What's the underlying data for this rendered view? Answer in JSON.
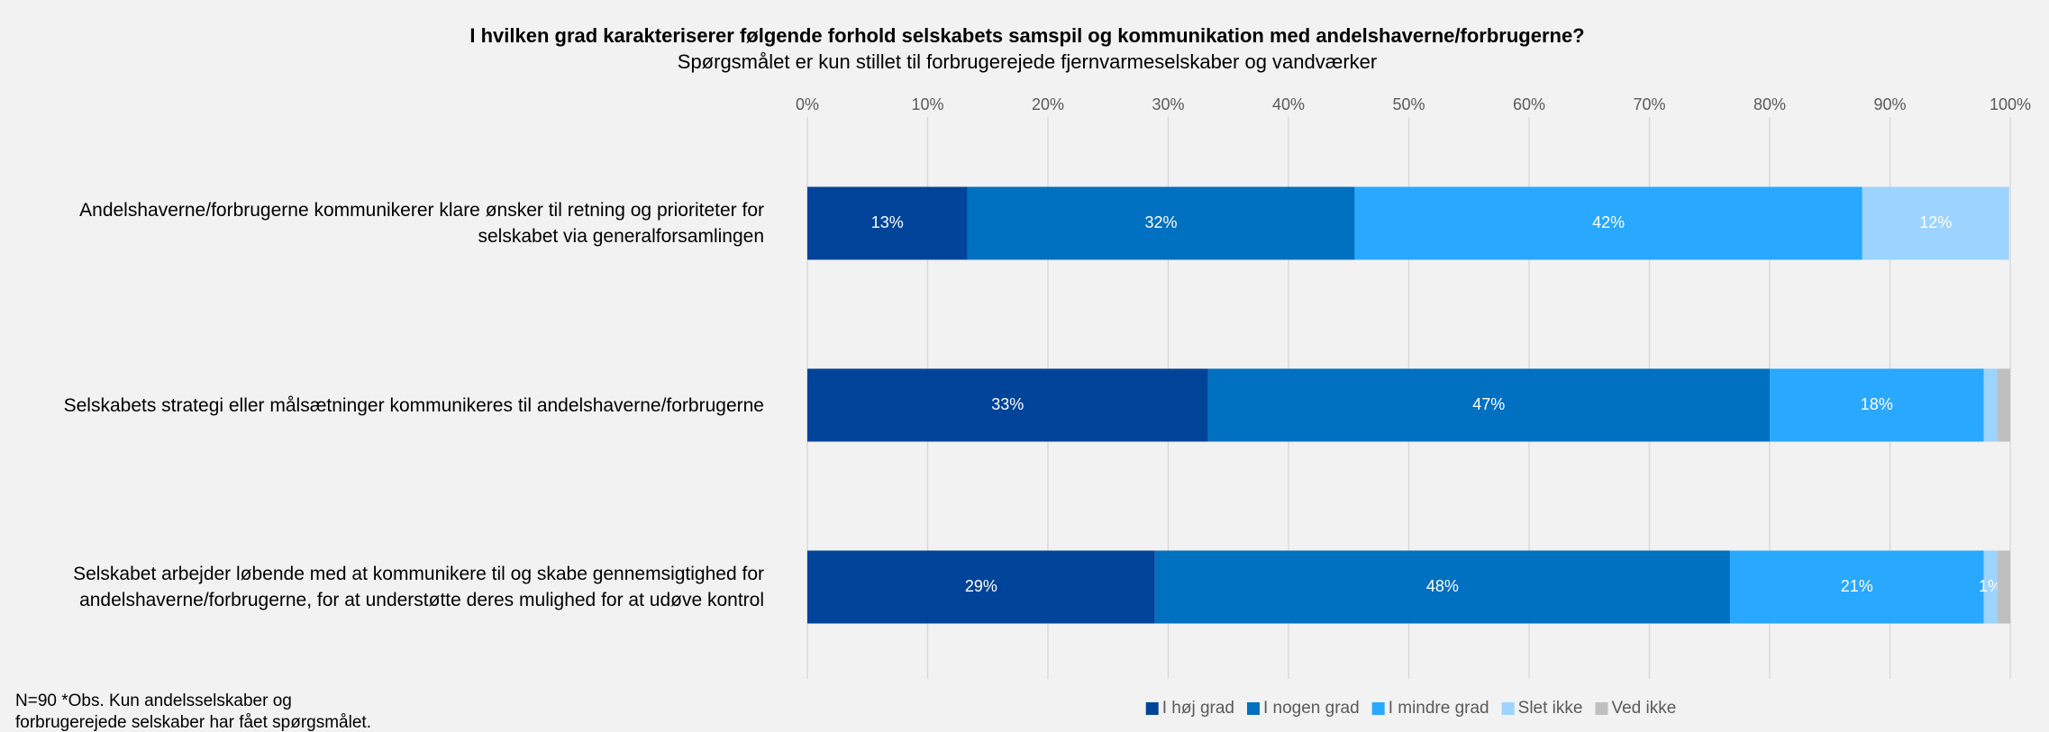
{
  "chart_data": {
    "type": "stacked_barh",
    "title": "I hvilken grad karakteriserer følgende forhold selskabets samspil og kommunikation med andelshaverne/forbrugerne?",
    "subtitle": "Spørgsmålet er kun stillet til forbrugerejede fjernvarmeselskaber og vandværker",
    "categories": [
      "Andelshaverne/forbrugerne kommunikerer klare ønsker til retning og prioriteter for selskabet via generalforsamlingen",
      "Selskabets strategi eller målsætninger kommunikeres til andelshaverne/forbrugerne",
      "Selskabet arbejder løbende med at kommunikere til og skabe gennemsigtighed for andelshaverne/forbrugerne, for at understøtte deres mulighed for at udøve kontrol"
    ],
    "series": [
      {
        "name": "I høj grad",
        "color": "#00449a",
        "values": [
          13.3,
          33.3,
          28.9
        ],
        "value_labels": [
          "13%",
          "33%",
          "29%"
        ]
      },
      {
        "name": "I nogen grad",
        "color": "#0070c0",
        "values": [
          32.2,
          46.7,
          47.8
        ],
        "value_labels": [
          "32%",
          "47%",
          "48%"
        ]
      },
      {
        "name": "I mindre grad",
        "color": "#29a8ff",
        "values": [
          42.2,
          17.8,
          21.1
        ],
        "value_labels": [
          "42%",
          "18%",
          "21%"
        ]
      },
      {
        "name": "Slet ikke",
        "color": "#9dd3ff",
        "values": [
          12.2,
          1.1,
          1.1
        ],
        "value_labels": [
          "12%",
          null,
          "1%"
        ]
      },
      {
        "name": "Ved ikke",
        "color": "#bfbfbf",
        "values": [
          0,
          1.1,
          1.1
        ],
        "value_labels": [
          null,
          null,
          null
        ]
      }
    ],
    "xlim": [
      0,
      100
    ],
    "xticks": [
      {
        "value": 0,
        "label": "0%"
      },
      {
        "value": 10,
        "label": "10%"
      },
      {
        "value": 20,
        "label": "20%"
      },
      {
        "value": 30,
        "label": "30%"
      },
      {
        "value": 40,
        "label": "40%"
      },
      {
        "value": 50,
        "label": "50%"
      },
      {
        "value": 60,
        "label": "60%"
      },
      {
        "value": 70,
        "label": "70%"
      },
      {
        "value": 80,
        "label": "80%"
      },
      {
        "value": 90,
        "label": "90%"
      },
      {
        "value": 100,
        "label": "100%"
      }
    ],
    "grid": true,
    "legend": "bottom",
    "footnote": [
      "N=90 *Obs. Kun andelsselskaber og",
      "forbrugerejede selskaber har fået spørgsmålet."
    ]
  }
}
